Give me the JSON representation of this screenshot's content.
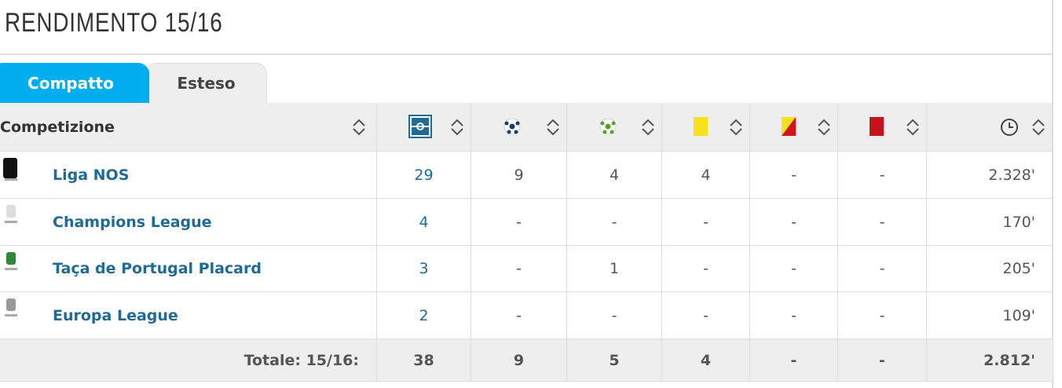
{
  "header": {
    "title": "RENDIMENTO 15/16"
  },
  "tabs": [
    "Compatto",
    "Esteso"
  ],
  "table": {
    "columns": [
      "Competizione"
    ],
    "rows": [
      [
        "Liga NOS",
        "29",
        "9",
        "4",
        "4",
        "-",
        "-",
        "2.328'"
      ],
      [
        "Champions League",
        "4",
        "-",
        "-",
        "-",
        "-",
        "-",
        "170'"
      ],
      [
        "Taça de Portugal Placard",
        "3",
        "-",
        "1",
        "-",
        "-",
        "-",
        "205'"
      ],
      [
        "Europa League",
        "2",
        "-",
        "-",
        "-",
        "-",
        "-",
        "109'"
      ]
    ],
    "total": [
      "Totale: 15/16:",
      "38",
      "9",
      "5",
      "4",
      "-",
      "-",
      "2.812'"
    ]
  }
}
